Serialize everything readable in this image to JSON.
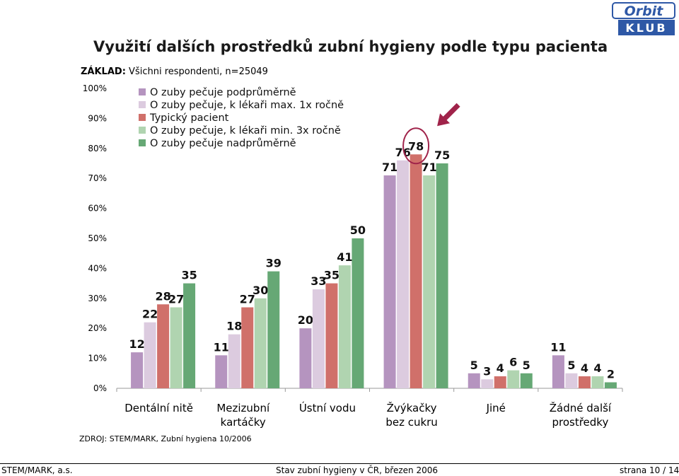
{
  "header": {
    "title": "Využití dalších prostředků zubní hygieny podle typu pacienta",
    "basis_label": "ZÁKLAD:",
    "basis_text": "Všichni respondenti, n=25049",
    "logo_top": "Orbit",
    "logo_bottom": "KLUB"
  },
  "source": "ZDROJ: STEM/MARK, Zubní hygiena 10/2006",
  "footer": {
    "left": "STEM/MARK, a.s.",
    "center": "Stav zubní hygieny v ČR, březen 2006",
    "right": "strana 10 / 14"
  },
  "colors": {
    "s1": "#b594bf",
    "s2": "#dccbdf",
    "s3": "#d0706a",
    "s4": "#b0d4b0",
    "s5": "#66a875",
    "highlight": "#a0234a",
    "arrow": "#a0234a",
    "logo": "#2e58a6"
  },
  "chart_data": {
    "type": "bar",
    "title": "Využití dalších prostředků zubní hygieny podle typu pacienta",
    "categories": [
      [
        "Dentální nitě"
      ],
      [
        "Mezizubní",
        "kartáčky"
      ],
      [
        "Ústní vodu"
      ],
      [
        "Žvýkačky",
        "bez cukru"
      ],
      [
        "Jiné"
      ],
      [
        "Žádné další",
        "prostředky"
      ]
    ],
    "series": [
      {
        "name": "O zuby pečuje podprůměrně",
        "values": [
          12,
          11,
          20,
          71,
          5,
          11
        ]
      },
      {
        "name": "O zuby pečuje, k lékaři max. 1x ročně",
        "values": [
          22,
          18,
          33,
          76,
          3,
          5
        ]
      },
      {
        "name": "Typický pacient",
        "values": [
          28,
          27,
          35,
          78,
          4,
          4
        ]
      },
      {
        "name": "O zuby pečuje, k lékaři min. 3x ročně",
        "values": [
          27,
          30,
          41,
          71,
          6,
          4
        ]
      },
      {
        "name": "O zuby pečuje nadprůměrně",
        "values": [
          35,
          39,
          50,
          75,
          5,
          2
        ]
      }
    ],
    "y_ticks": [
      "0%",
      "10%",
      "20%",
      "30%",
      "40%",
      "50%",
      "60%",
      "70%",
      "80%",
      "90%",
      "100%"
    ],
    "ylim": [
      0,
      100
    ],
    "legend_position": "top-left",
    "highlight": {
      "category_index": 3,
      "series_index": 2
    }
  }
}
